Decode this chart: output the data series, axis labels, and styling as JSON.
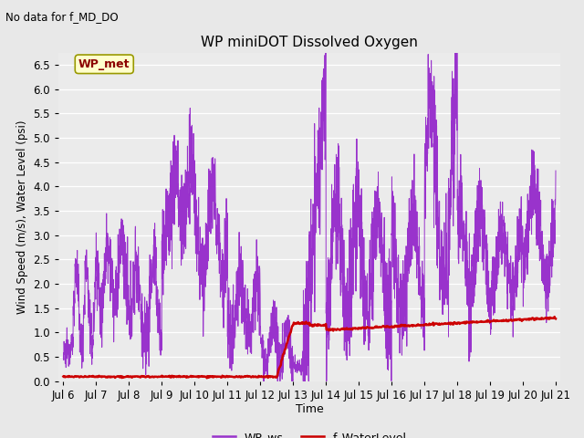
{
  "title": "WP miniDOT Dissolved Oxygen",
  "no_data_text": "No data for f_MD_DO",
  "ylabel": "Wind Speed (m/s), Water Level (psi)",
  "xlabel": "Time",
  "ylim": [
    0.0,
    6.75
  ],
  "bg_color": "#e8e8e8",
  "plot_bg_color": "#ebebeb",
  "legend_box_color": "#ffffcc",
  "legend_box_edge": "#999900",
  "legend_label": "WP_met",
  "line1_color": "#9933cc",
  "line2_color": "#cc0000",
  "line1_label": "WP_ws",
  "line2_label": "f_WaterLevel",
  "xtick_labels": [
    "Jul 6",
    "Jul 7",
    "Jul 8",
    "Jul 9",
    "Jul 10",
    "Jul 11",
    "Jul 12",
    "Jul 13",
    "Jul 14",
    "Jul 15",
    "Jul 16",
    "Jul 17",
    "Jul 18",
    "Jul 19",
    "Jul 20",
    "Jul 21"
  ],
  "xtick_positions": [
    0,
    1,
    2,
    3,
    4,
    5,
    6,
    7,
    8,
    9,
    10,
    11,
    12,
    13,
    14,
    15
  ],
  "ytick_positions": [
    0.0,
    0.5,
    1.0,
    1.5,
    2.0,
    2.5,
    3.0,
    3.5,
    4.0,
    4.5,
    5.0,
    5.5,
    6.0,
    6.5
  ]
}
